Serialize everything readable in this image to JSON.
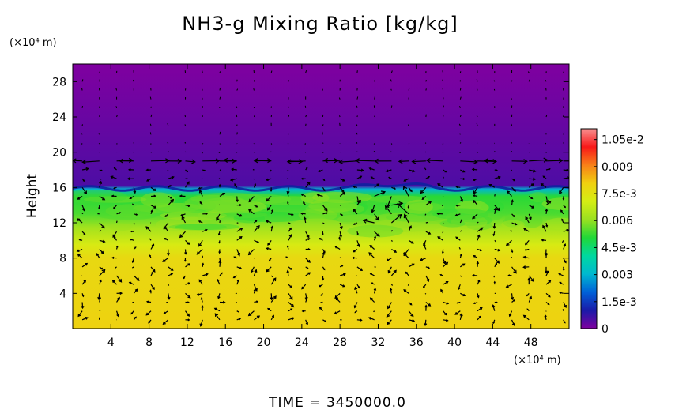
{
  "chart_data": {
    "type": "heatmap",
    "title": "NH3-g Mixing Ratio [kg/kg]",
    "ylabel": "Height",
    "xunit": "(×10⁴ m)",
    "yunit": "(×10⁴ m)",
    "xlim": [
      0,
      52
    ],
    "ylim": [
      0,
      30
    ],
    "xticks": [
      "4",
      "8",
      "12",
      "16",
      "20",
      "24",
      "28",
      "32",
      "36",
      "40",
      "44",
      "48"
    ],
    "yticks": [
      "4",
      "8",
      "12",
      "16",
      "20",
      "24",
      "28"
    ],
    "colorbar": {
      "vmin": 0,
      "vmax": 0.0111,
      "labels": [
        "0",
        "1.5e-3",
        "0.003",
        "4.5e-3",
        "0.006",
        "7.5e-3",
        "0.009",
        "1.05e-2"
      ],
      "label_values": [
        0,
        0.0015,
        0.003,
        0.0045,
        0.006,
        0.0075,
        0.009,
        0.0105
      ]
    },
    "colormap": [
      "#7f00a0",
      "#1a1aa8",
      "#0060d8",
      "#00b8d0",
      "#00d8a0",
      "#20d838",
      "#9ae020",
      "#d4ee14",
      "#f0d010",
      "#f88018",
      "#f81818",
      "#f89090"
    ],
    "vertical_profile": [
      {
        "height": 0,
        "value": 0.008
      },
      {
        "height": 8.0,
        "value": 0.0078
      },
      {
        "height": 9.5,
        "value": 0.0072
      },
      {
        "height": 11.5,
        "value": 0.0062
      },
      {
        "height": 13.0,
        "value": 0.0054
      },
      {
        "height": 15.0,
        "value": 0.0051
      },
      {
        "height": 15.8,
        "value": 0.003
      },
      {
        "height": 16.2,
        "value": 0.0005
      },
      {
        "height": 30,
        "value": 0
      }
    ],
    "vectors": "wind velocity arrows overlaid on field",
    "footer": "TIME  =  3450000.0"
  }
}
